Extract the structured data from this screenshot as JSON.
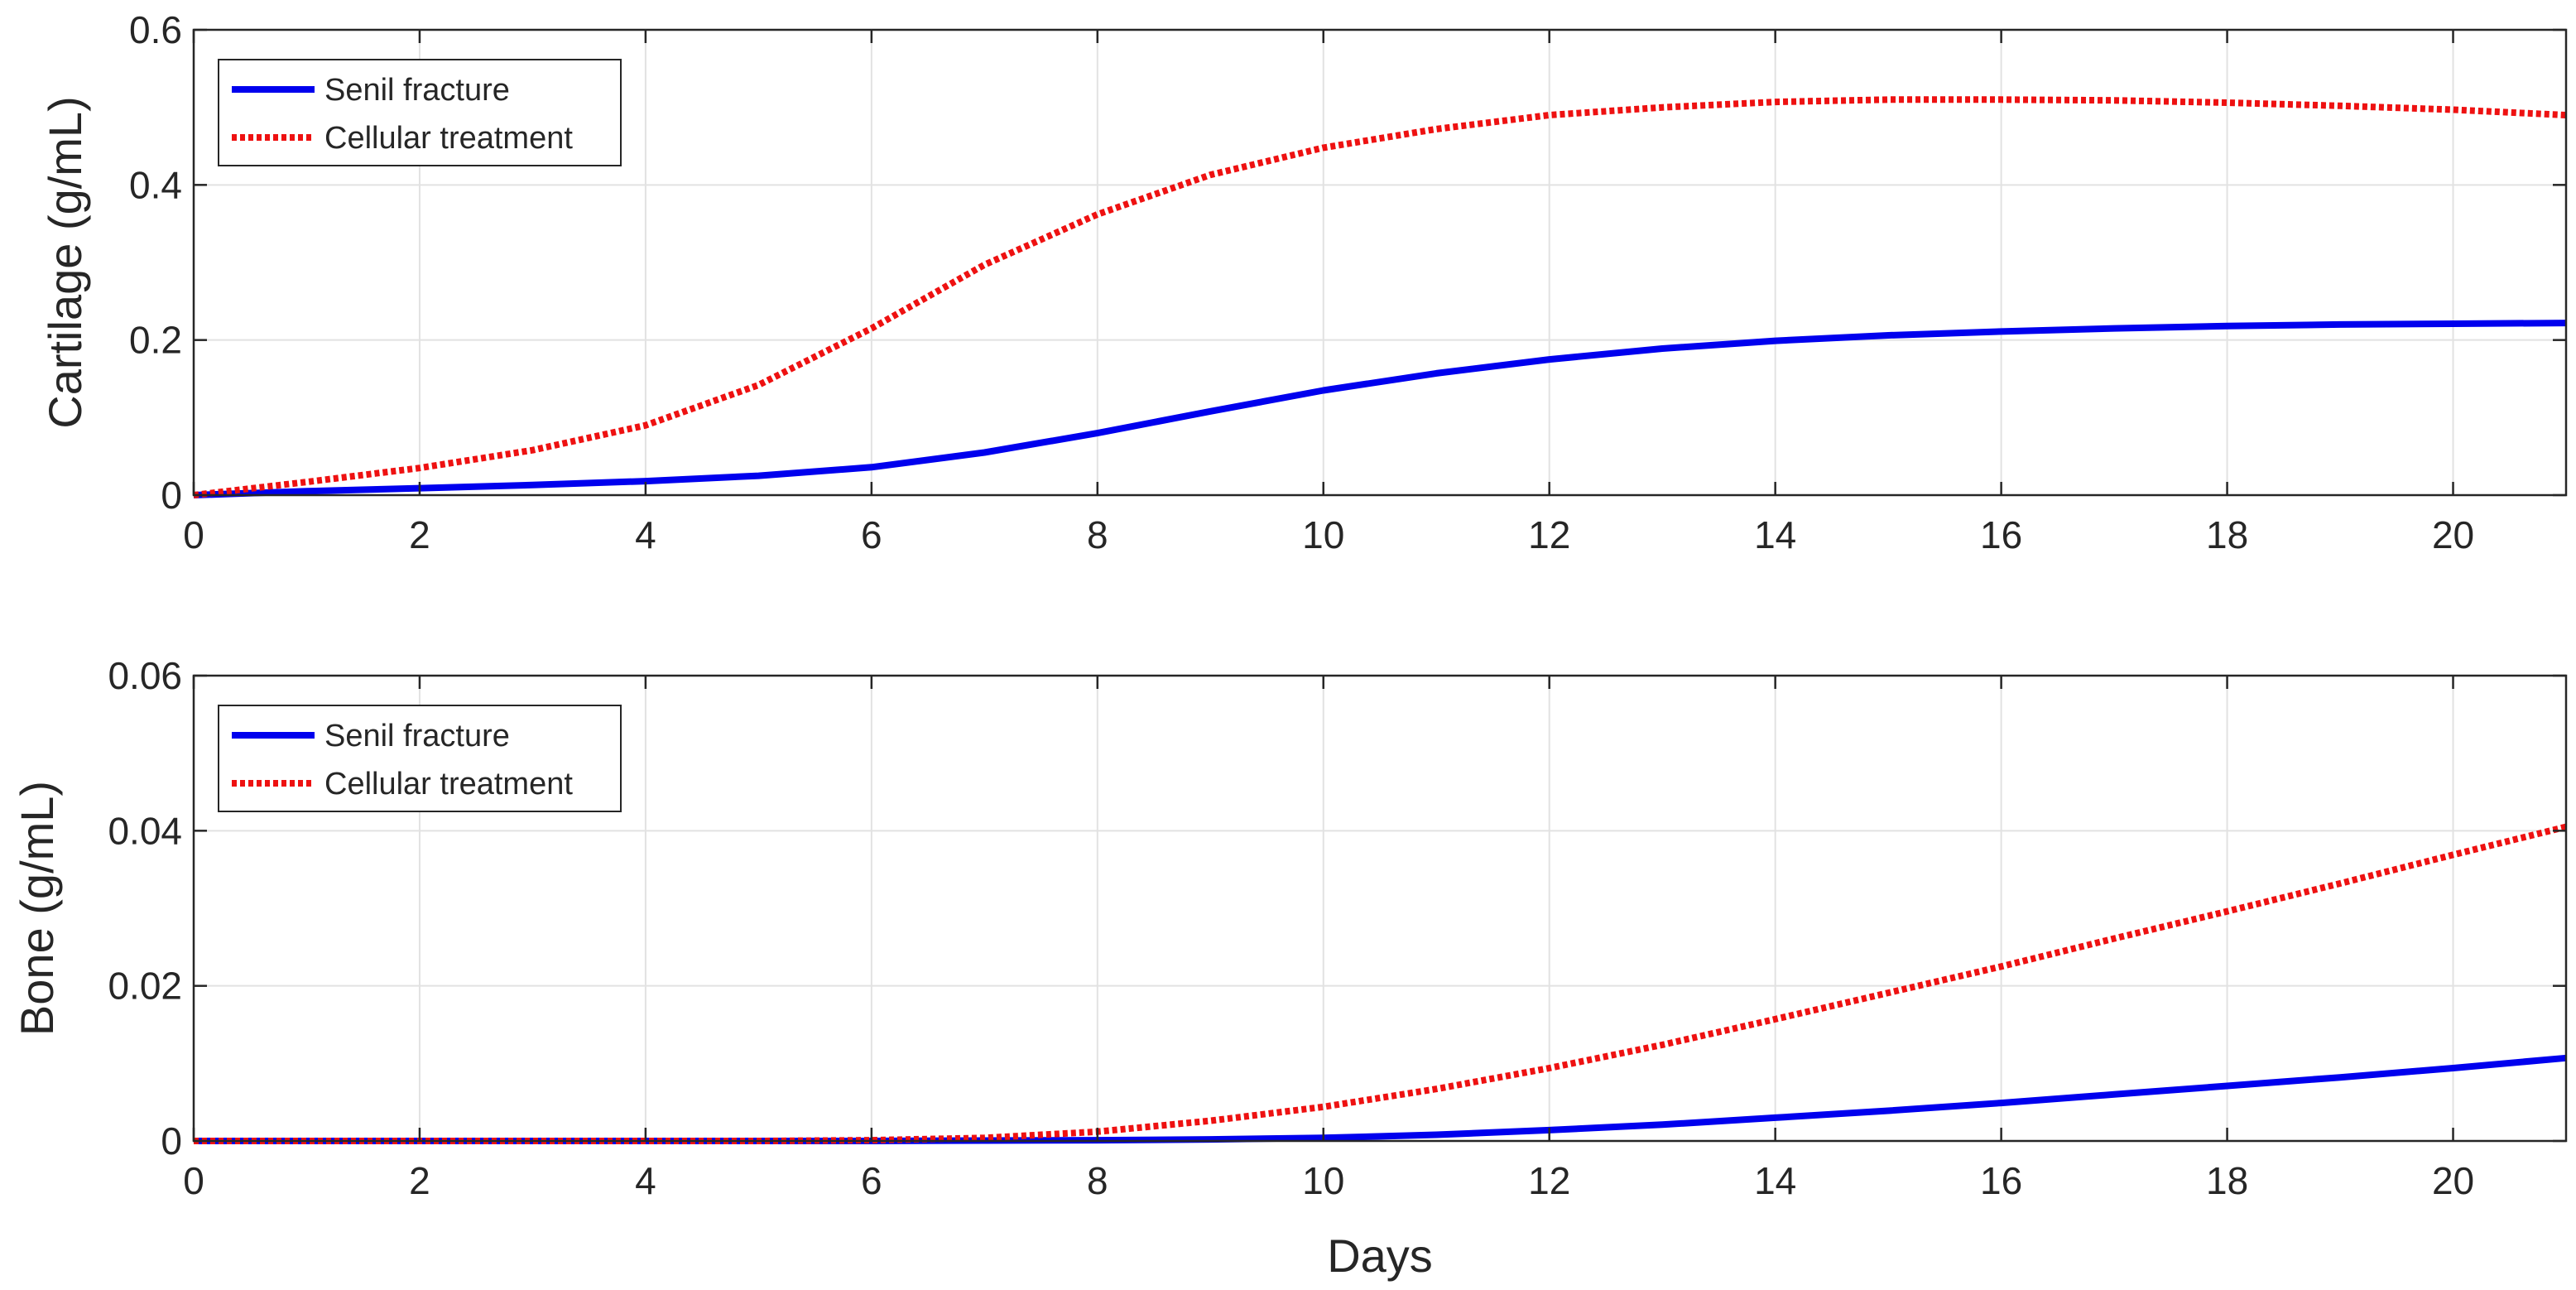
{
  "colors": {
    "senil": "#0000ee",
    "treatment": "#ee1111",
    "grid": "#e2e2e2",
    "axis": "#262626"
  },
  "chart_data": [
    {
      "type": "line",
      "title": "",
      "xlabel": "",
      "ylabel": "Cartilage (g/mL)",
      "xlim": [
        0,
        21
      ],
      "ylim": [
        0,
        0.6
      ],
      "xticks": [
        "0",
        "2",
        "4",
        "6",
        "8",
        "10",
        "12",
        "14",
        "16",
        "18",
        "20"
      ],
      "yticks": [
        "0",
        "0.2",
        "0.4",
        "0.6"
      ],
      "grid": true,
      "legend_position": "top-left",
      "x": [
        0,
        1,
        2,
        3,
        4,
        5,
        6,
        7,
        8,
        9,
        10,
        11,
        12,
        13,
        14,
        15,
        16,
        17,
        18,
        19,
        20,
        21
      ],
      "series": [
        {
          "name": "Senil fracture",
          "style": "solid",
          "values": [
            0.0,
            0.005,
            0.009,
            0.013,
            0.018,
            0.025,
            0.036,
            0.055,
            0.08,
            0.108,
            0.135,
            0.157,
            0.175,
            0.189,
            0.199,
            0.206,
            0.211,
            0.215,
            0.218,
            0.22,
            0.221,
            0.222
          ]
        },
        {
          "name": "Cellular treatment",
          "style": "dotted",
          "values": [
            0.0,
            0.017,
            0.035,
            0.058,
            0.09,
            0.142,
            0.215,
            0.297,
            0.362,
            0.413,
            0.448,
            0.472,
            0.49,
            0.5,
            0.507,
            0.51,
            0.51,
            0.509,
            0.506,
            0.502,
            0.497,
            0.49
          ]
        }
      ]
    },
    {
      "type": "line",
      "title": "",
      "xlabel": "Days",
      "ylabel": "Bone (g/mL)",
      "xlim": [
        0,
        21
      ],
      "ylim": [
        0,
        0.06
      ],
      "xticks": [
        "0",
        "2",
        "4",
        "6",
        "8",
        "10",
        "12",
        "14",
        "16",
        "18",
        "20"
      ],
      "yticks": [
        "0",
        "0.02",
        "0.04",
        "0.06"
      ],
      "grid": true,
      "legend_position": "top-left",
      "x": [
        0,
        1,
        2,
        3,
        4,
        5,
        6,
        7,
        8,
        9,
        10,
        11,
        12,
        13,
        14,
        15,
        16,
        17,
        18,
        19,
        20,
        21
      ],
      "series": [
        {
          "name": "Senil fracture",
          "style": "solid",
          "values": [
            0,
            0,
            0,
            0,
            0,
            0,
            0,
            5e-05,
            0.0001,
            0.0002,
            0.0004,
            0.0008,
            0.0014,
            0.0021,
            0.003,
            0.0039,
            0.0049,
            0.006,
            0.0071,
            0.0082,
            0.0094,
            0.0107
          ]
        },
        {
          "name": "Cellular treatment",
          "style": "dotted",
          "values": [
            0,
            0,
            0,
            0,
            0,
            0,
            0.0001,
            0.0004,
            0.0012,
            0.0026,
            0.0044,
            0.0067,
            0.0094,
            0.0124,
            0.0157,
            0.0191,
            0.0225,
            0.0261,
            0.0296,
            0.0332,
            0.0369,
            0.0405
          ]
        }
      ]
    }
  ]
}
